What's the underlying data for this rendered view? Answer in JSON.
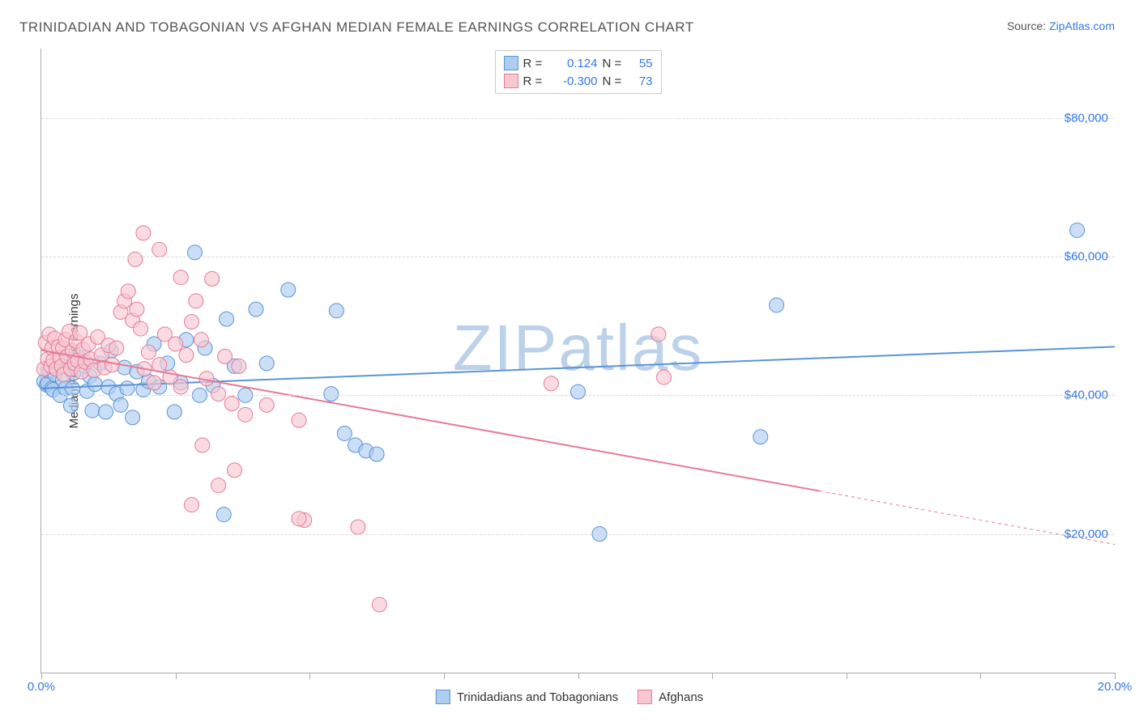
{
  "title": "TRINIDADIAN AND TOBAGONIAN VS AFGHAN MEDIAN FEMALE EARNINGS CORRELATION CHART",
  "source_label": "Source:",
  "source_name": "ZipAtlas.com",
  "watermark": "ZIPatlas",
  "chart": {
    "type": "scatter",
    "ylabel": "Median Female Earnings",
    "xlim": [
      0,
      20
    ],
    "ylim": [
      0,
      90000
    ],
    "gridlines_y": [
      20000,
      40000,
      60000,
      80000
    ],
    "ytick_labels": [
      "$20,000",
      "$40,000",
      "$60,000",
      "$80,000"
    ],
    "xtick_positions": [
      0,
      2.5,
      5,
      7.5,
      10,
      12.5,
      15,
      17.5,
      20
    ],
    "xtick_labels": {
      "0": "0.0%",
      "20": "20.0%"
    },
    "background_color": "#ffffff",
    "grid_color": "#d8d8d8",
    "axis_color": "#aaaaaa",
    "label_color": "#3478e5",
    "text_color": "#333333",
    "title_color": "#555555",
    "title_fontsize": 17,
    "label_fontsize": 15,
    "series": [
      {
        "name": "Trinidadians and Tobagonians",
        "key": "trinidad",
        "color_fill": "#aecdf0",
        "color_stroke": "#5a94d8",
        "R": "0.124",
        "N": "55",
        "marker_radius": 9,
        "regression": {
          "x0": 0,
          "y0": 41000,
          "x1": 20,
          "y1": 47000,
          "extrapolate_from_x": null,
          "stroke_width": 2
        },
        "points": [
          [
            0.05,
            42000
          ],
          [
            0.1,
            41500
          ],
          [
            0.12,
            41700
          ],
          [
            0.15,
            43500
          ],
          [
            0.2,
            41000
          ],
          [
            0.22,
            40800
          ],
          [
            0.25,
            43000
          ],
          [
            0.3,
            45000
          ],
          [
            0.35,
            40000
          ],
          [
            0.4,
            42200
          ],
          [
            0.45,
            41000
          ],
          [
            0.5,
            44000
          ],
          [
            0.55,
            38500
          ],
          [
            0.58,
            41000
          ],
          [
            0.6,
            43200
          ],
          [
            0.7,
            45500
          ],
          [
            0.8,
            44200
          ],
          [
            0.85,
            40600
          ],
          [
            0.9,
            42800
          ],
          [
            0.95,
            37800
          ],
          [
            1.0,
            41600
          ],
          [
            1.1,
            44600
          ],
          [
            1.2,
            37600
          ],
          [
            1.25,
            41200
          ],
          [
            1.3,
            46400
          ],
          [
            1.4,
            40200
          ],
          [
            1.48,
            38600
          ],
          [
            1.55,
            44000
          ],
          [
            1.6,
            41000
          ],
          [
            1.7,
            36800
          ],
          [
            1.78,
            43400
          ],
          [
            1.9,
            40800
          ],
          [
            2.0,
            42000
          ],
          [
            2.1,
            47400
          ],
          [
            2.2,
            41200
          ],
          [
            2.35,
            44600
          ],
          [
            2.48,
            37600
          ],
          [
            2.6,
            41800
          ],
          [
            2.7,
            48000
          ],
          [
            2.86,
            60600
          ],
          [
            2.95,
            40000
          ],
          [
            3.05,
            46800
          ],
          [
            3.2,
            41400
          ],
          [
            3.45,
            51000
          ],
          [
            3.6,
            44200
          ],
          [
            3.8,
            40000
          ],
          [
            4.0,
            52400
          ],
          [
            4.2,
            44600
          ],
          [
            4.6,
            55200
          ],
          [
            5.4,
            40200
          ],
          [
            5.5,
            52200
          ],
          [
            5.65,
            34500
          ],
          [
            5.85,
            32800
          ],
          [
            6.05,
            32000
          ],
          [
            6.25,
            31500
          ],
          [
            3.4,
            22800
          ],
          [
            10.0,
            40500
          ],
          [
            10.4,
            20000
          ],
          [
            13.4,
            34000
          ],
          [
            13.7,
            53000
          ],
          [
            19.3,
            63800
          ]
        ]
      },
      {
        "name": "Afghans",
        "key": "afghan",
        "color_fill": "#f7c7d2",
        "color_stroke": "#e67a96",
        "R": "-0.300",
        "N": "73",
        "marker_radius": 9,
        "regression": {
          "x0": 0,
          "y0": 46500,
          "x1": 20,
          "y1": 18500,
          "extrapolate_from_x": 14.5,
          "stroke_width": 2
        },
        "points": [
          [
            0.05,
            43800
          ],
          [
            0.08,
            47600
          ],
          [
            0.12,
            45200
          ],
          [
            0.15,
            48800
          ],
          [
            0.18,
            44200
          ],
          [
            0.2,
            46800
          ],
          [
            0.22,
            45000
          ],
          [
            0.25,
            48200
          ],
          [
            0.28,
            43800
          ],
          [
            0.32,
            47000
          ],
          [
            0.35,
            45400
          ],
          [
            0.38,
            44200
          ],
          [
            0.4,
            46800
          ],
          [
            0.42,
            43000
          ],
          [
            0.45,
            48000
          ],
          [
            0.48,
            45600
          ],
          [
            0.52,
            49200
          ],
          [
            0.55,
            43800
          ],
          [
            0.58,
            46400
          ],
          [
            0.62,
            44600
          ],
          [
            0.65,
            47800
          ],
          [
            0.68,
            45000
          ],
          [
            0.72,
            49000
          ],
          [
            0.75,
            43400
          ],
          [
            0.78,
            46600
          ],
          [
            0.82,
            44800
          ],
          [
            0.88,
            47400
          ],
          [
            0.92,
            45200
          ],
          [
            0.98,
            43600
          ],
          [
            1.05,
            48400
          ],
          [
            1.12,
            45800
          ],
          [
            1.18,
            44000
          ],
          [
            1.25,
            47200
          ],
          [
            1.32,
            44400
          ],
          [
            1.4,
            46800
          ],
          [
            1.48,
            52000
          ],
          [
            1.55,
            53600
          ],
          [
            1.62,
            55000
          ],
          [
            1.7,
            50800
          ],
          [
            1.78,
            52400
          ],
          [
            1.85,
            49600
          ],
          [
            1.92,
            43800
          ],
          [
            2.0,
            46200
          ],
          [
            2.1,
            41800
          ],
          [
            2.2,
            44400
          ],
          [
            2.3,
            48800
          ],
          [
            2.4,
            42600
          ],
          [
            2.5,
            47400
          ],
          [
            2.6,
            41200
          ],
          [
            2.7,
            45800
          ],
          [
            2.8,
            50600
          ],
          [
            2.88,
            53600
          ],
          [
            2.98,
            48000
          ],
          [
            3.08,
            42400
          ],
          [
            3.18,
            56800
          ],
          [
            3.3,
            40200
          ],
          [
            3.42,
            45600
          ],
          [
            3.55,
            38800
          ],
          [
            3.68,
            44200
          ],
          [
            3.8,
            37200
          ],
          [
            3.0,
            32800
          ],
          [
            2.6,
            57000
          ],
          [
            1.75,
            59600
          ],
          [
            1.9,
            63400
          ],
          [
            2.2,
            61000
          ],
          [
            2.8,
            24200
          ],
          [
            3.3,
            27000
          ],
          [
            3.6,
            29200
          ],
          [
            4.2,
            38600
          ],
          [
            4.8,
            36400
          ],
          [
            4.9,
            22000
          ],
          [
            4.8,
            22200
          ],
          [
            5.9,
            21000
          ],
          [
            6.3,
            9800
          ],
          [
            9.5,
            41700
          ],
          [
            11.6,
            42600
          ],
          [
            11.5,
            48800
          ]
        ]
      }
    ]
  },
  "legend_top": {
    "r_label": "R =",
    "n_label": "N ="
  }
}
